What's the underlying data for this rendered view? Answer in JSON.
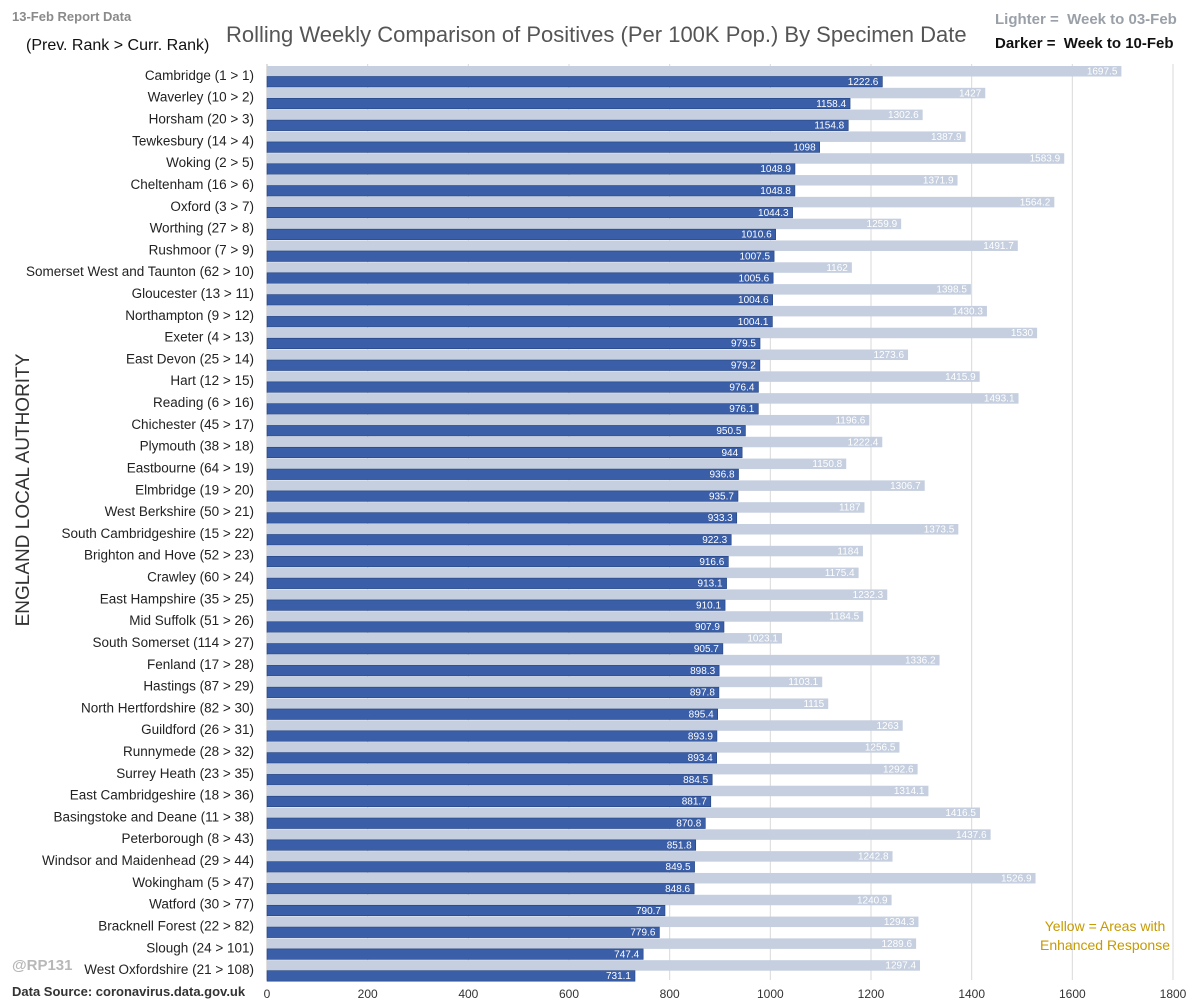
{
  "header": {
    "report_date": "13-Feb Report Data",
    "rank_note": "(Prev. Rank > Curr. Rank)",
    "title": "Rolling Weekly Comparison of Positives  (Per 100K Pop.) By Specimen Date",
    "legend_light": "Lighter =  Week to 03-Feb",
    "legend_dark": "Darker =  Week to 10-Feb"
  },
  "footer": {
    "handle": "@RP131",
    "source": "Data Source: coronavirus.data.gov.uk",
    "yellow_note_line1": "Yellow = Areas with",
    "yellow_note_line2": "Enhanced Response"
  },
  "colors": {
    "dark_bar": "#3a5ea8",
    "dark_bar_edge": "#22427f",
    "light_bar": "#c5cfdf",
    "grid": "#d9d9d9"
  },
  "chart_data": {
    "type": "bar",
    "orientation": "horizontal",
    "title": "Rolling Weekly Comparison of Positives  (Per 100K Pop.) By Specimen Date",
    "xlabel": "",
    "ylabel": "ENGLAND LOCAL AUTHORITY",
    "xlim": [
      0,
      1800
    ],
    "xticks": [
      0,
      200,
      400,
      600,
      800,
      1000,
      1200,
      1400,
      1600,
      1800
    ],
    "categories": [
      "Cambridge (1 > 1)",
      "Waverley (10 > 2)",
      "Horsham (20 > 3)",
      "Tewkesbury (14 > 4)",
      "Woking (2 > 5)",
      "Cheltenham (16 > 6)",
      "Oxford (3 > 7)",
      "Worthing (27 > 8)",
      "Rushmoor (7 > 9)",
      "Somerset West and Taunton (62 > 10)",
      "Gloucester (13 > 11)",
      "Northampton (9 > 12)",
      "Exeter (4 > 13)",
      "East Devon (25 > 14)",
      "Hart (12 > 15)",
      "Reading (6 > 16)",
      "Chichester (45 > 17)",
      "Plymouth (38 > 18)",
      "Eastbourne (64 > 19)",
      "Elmbridge (19 > 20)",
      "West Berkshire (50 > 21)",
      "South Cambridgeshire (15 > 22)",
      "Brighton and Hove (52 > 23)",
      "Crawley (60 > 24)",
      "East Hampshire (35 > 25)",
      "Mid Suffolk (51 > 26)",
      "South Somerset (114 > 27)",
      "Fenland (17 > 28)",
      "Hastings (87 > 29)",
      "North Hertfordshire (82 > 30)",
      "Guildford (26 > 31)",
      "Runnymede (28 > 32)",
      "Surrey Heath (23 > 35)",
      "East Cambridgeshire (18 > 36)",
      "Basingstoke and Deane (11 > 38)",
      "Peterborough (8 > 43)",
      "Windsor and Maidenhead (29 > 44)",
      "Wokingham (5 > 47)",
      "Watford (30 > 77)",
      "Bracknell Forest (22 > 82)",
      "Slough (24 > 101)",
      "West Oxfordshire (21 > 108)"
    ],
    "series": [
      {
        "name": "Week to 03-Feb",
        "shade": "lighter",
        "values": [
          1697.5,
          1427,
          1302.6,
          1387.9,
          1583.9,
          1371.9,
          1564.2,
          1259.9,
          1491.7,
          1162,
          1398.5,
          1430.3,
          1530,
          1273.6,
          1415.9,
          1493.1,
          1196.6,
          1222.4,
          1150.8,
          1306.7,
          1187,
          1373.5,
          1184,
          1175.4,
          1232.3,
          1184.5,
          1023.1,
          1336.2,
          1103.1,
          1115,
          1263,
          1256.5,
          1292.6,
          1314.1,
          1416.5,
          1437.6,
          1242.8,
          1526.9,
          1240.9,
          1294.3,
          1289.6,
          1297.4
        ]
      },
      {
        "name": "Week to 10-Feb",
        "shade": "darker",
        "values": [
          1222.6,
          1158.4,
          1154.8,
          1098,
          1048.9,
          1048.8,
          1044.3,
          1010.6,
          1007.5,
          1005.6,
          1004.6,
          1004.1,
          979.5,
          979.2,
          976.4,
          976.1,
          950.5,
          944,
          936.8,
          935.7,
          933.3,
          922.3,
          916.6,
          913.1,
          910.1,
          907.9,
          905.7,
          898.3,
          897.8,
          895.4,
          893.9,
          893.4,
          884.5,
          881.7,
          870.8,
          851.8,
          849.5,
          848.6,
          790.7,
          779.6,
          747.4,
          731.1
        ]
      }
    ],
    "legend": "top-right"
  }
}
